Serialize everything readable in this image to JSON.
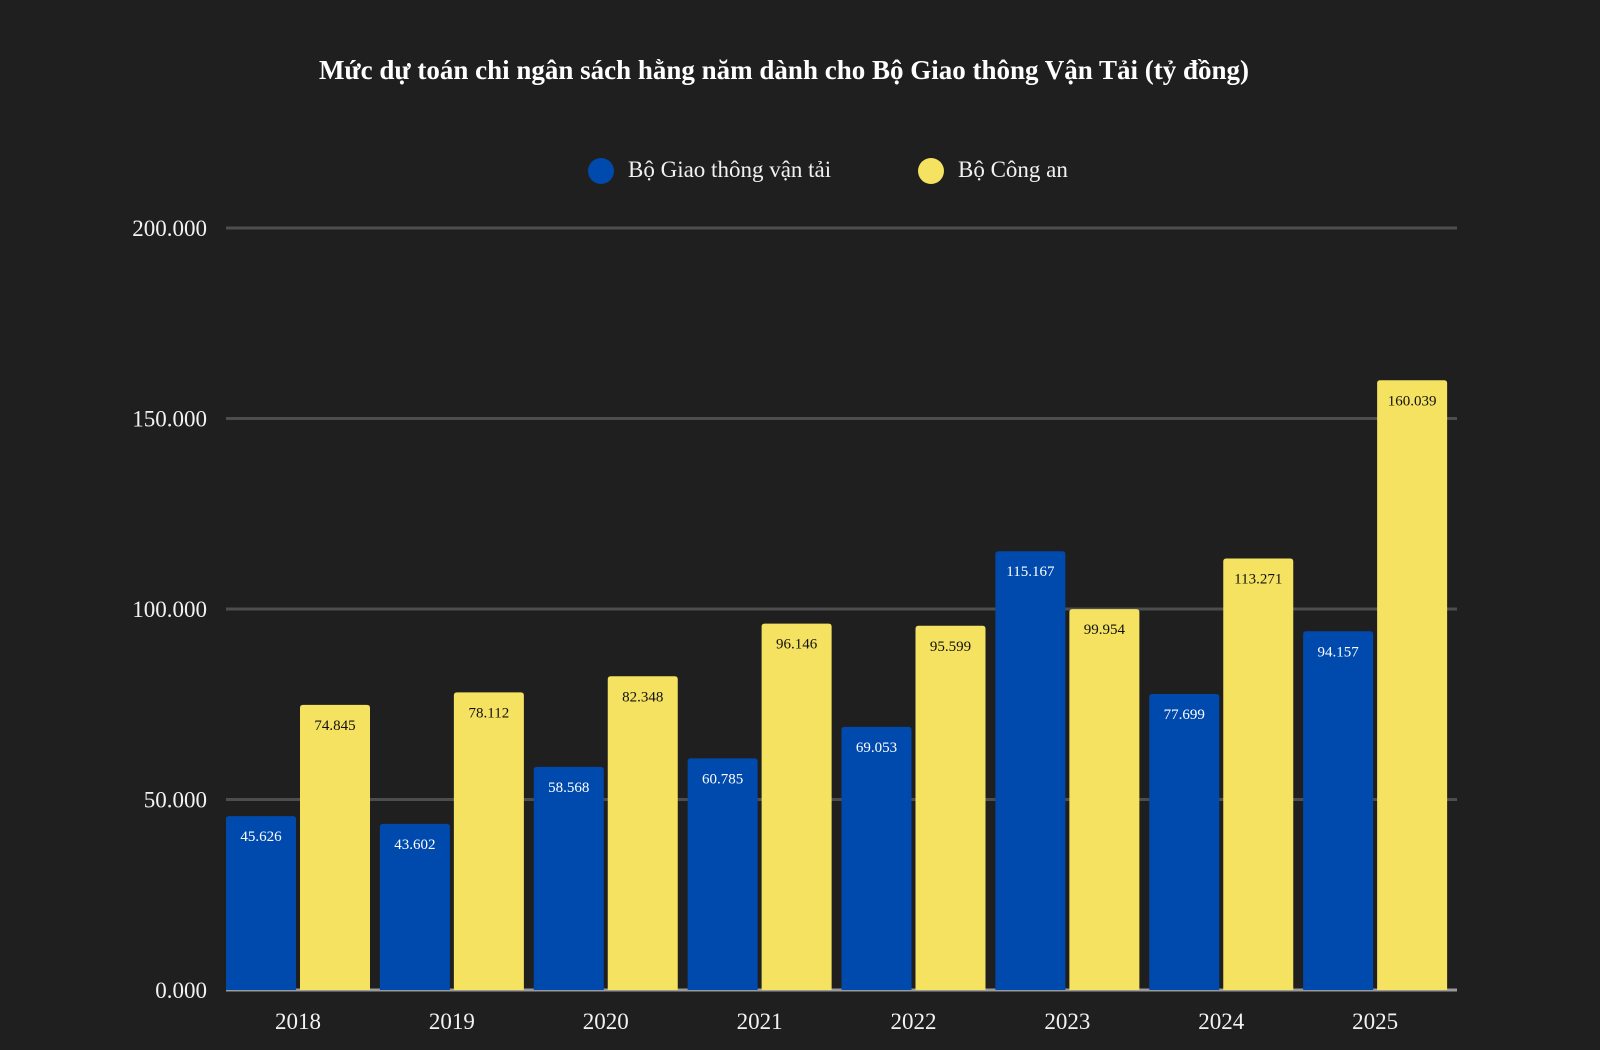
{
  "chart_data": {
    "type": "bar",
    "title": "Mức dự toán chi ngân sách hằng năm dành cho Bộ Giao thông Vận Tải (tỷ đồng)",
    "xlabel": "",
    "ylabel": "",
    "categories": [
      "2018",
      "2019",
      "2020",
      "2021",
      "2022",
      "2023",
      "2024",
      "2025"
    ],
    "series": [
      {
        "name": "Bộ Giao thông vận tải",
        "color": "#004aad",
        "values": [
          45626,
          43602,
          58568,
          60785,
          69053,
          115167,
          77699,
          94157
        ],
        "labels": [
          "45.626",
          "43.602",
          "58.568",
          "60.785",
          "69.053",
          "115.167",
          "77.699",
          "94.157"
        ]
      },
      {
        "name": "Bộ Công an",
        "color": "#f5e260",
        "values": [
          74845,
          78112,
          82348,
          96146,
          95599,
          99954,
          113271,
          160039
        ],
        "labels": [
          "74.845",
          "78.112",
          "82.348",
          "96.146",
          "95.599",
          "99.954",
          "113.271",
          "160.039"
        ]
      }
    ],
    "ylim": [
      0,
      200000
    ],
    "yticks": [
      0,
      50000,
      100000,
      150000,
      200000
    ],
    "ytick_labels": [
      "0.000",
      "50.000",
      "100.000",
      "150.000",
      "200.000"
    ],
    "grid": true,
    "legend_position": "top-center",
    "background": "#1f1f1f"
  }
}
